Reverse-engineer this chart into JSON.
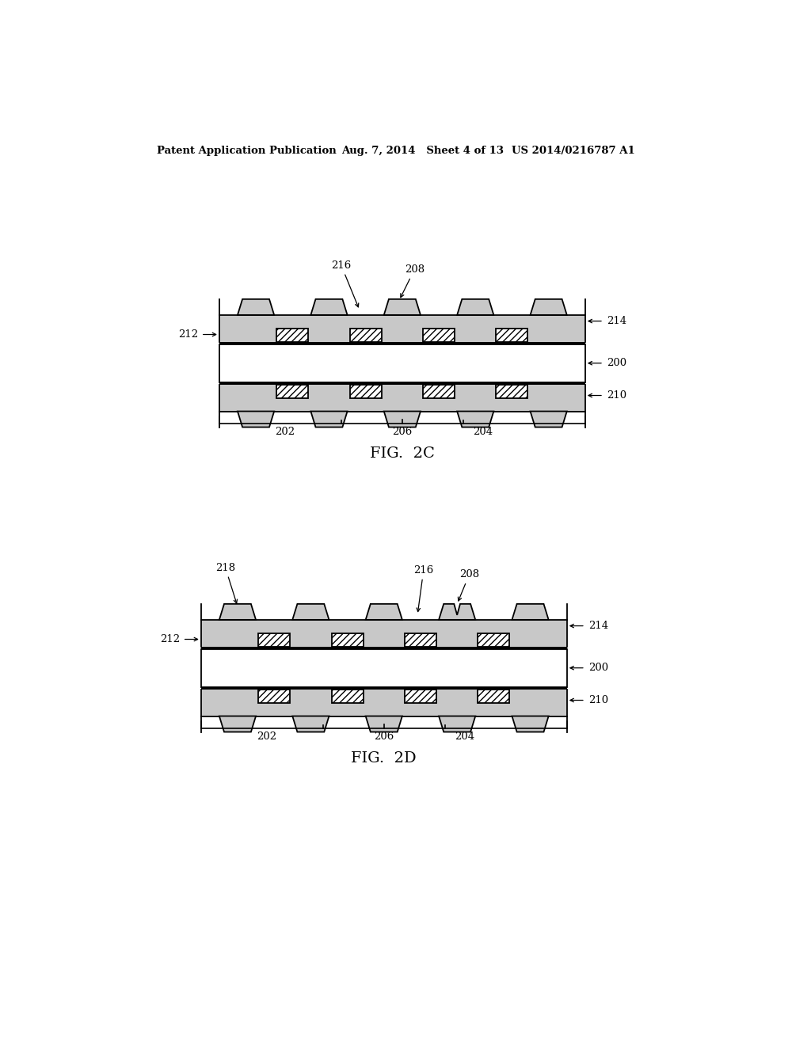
{
  "background_color": "#ffffff",
  "header_left": "Patent Application Publication",
  "header_mid": "Aug. 7, 2014   Sheet 4 of 13",
  "header_right": "US 2014/0216787 A1",
  "fig2c_label": "FIG.  2C",
  "fig2d_label": "FIG.  2D",
  "dot_color": "#c8c8c8",
  "black": "#000000",
  "white": "#ffffff"
}
